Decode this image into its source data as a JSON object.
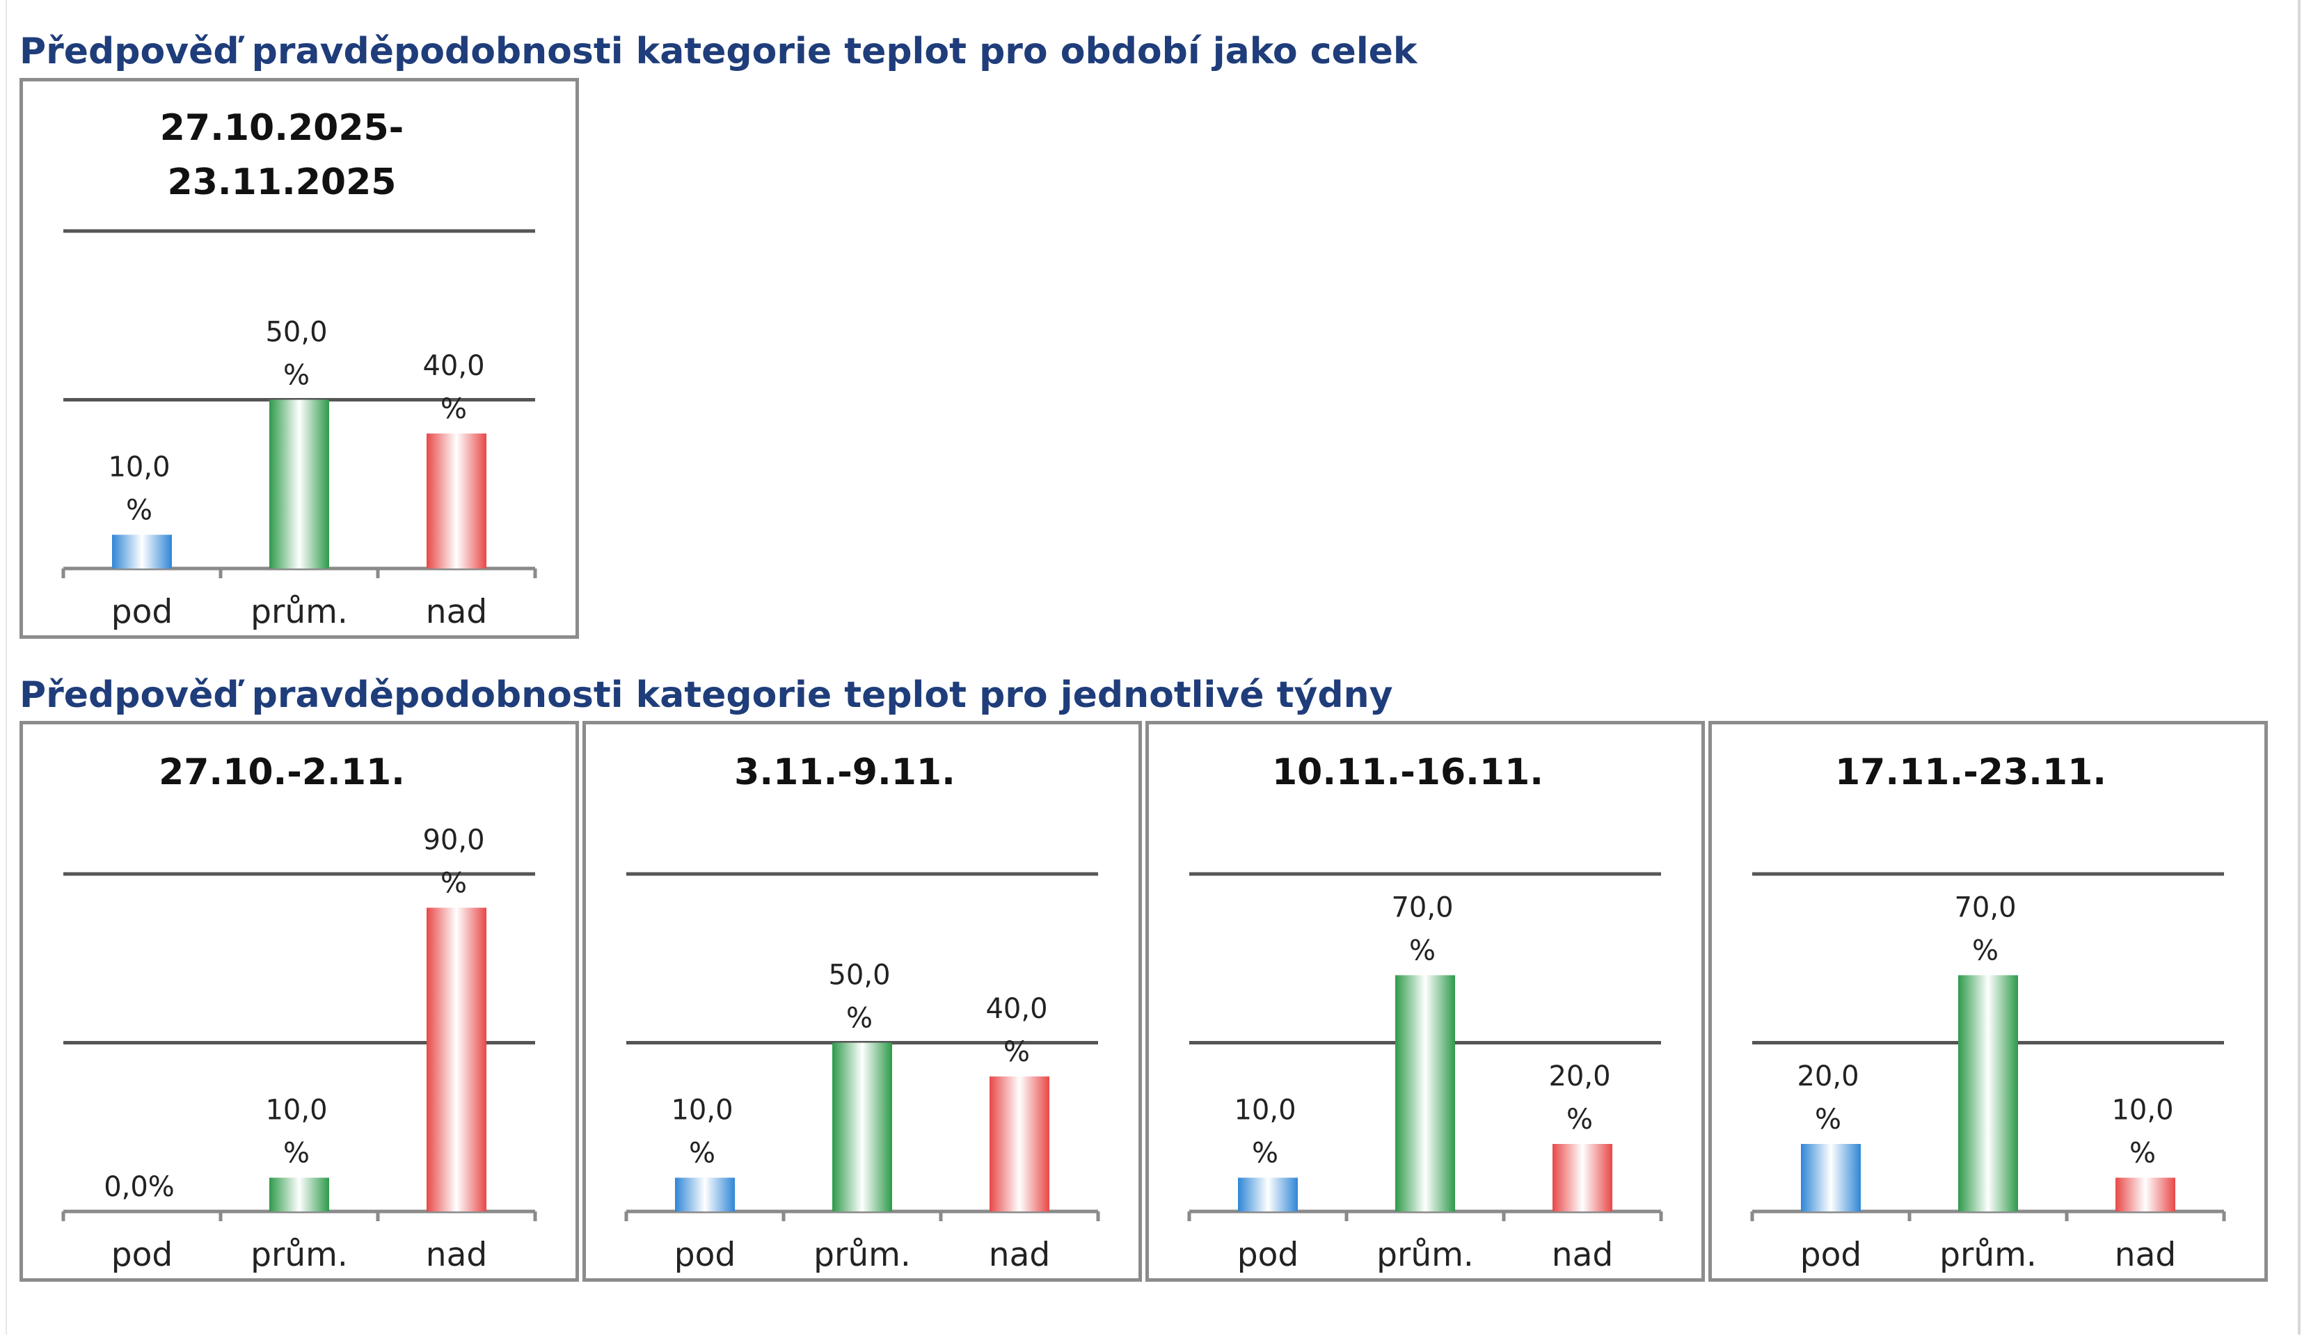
{
  "headings": {
    "overall": "Předpověď pravděpodobnosti kategorie teplot pro období jako celek",
    "weekly": "Předpověď pravděpodobnosti kategorie teplot pro jednotlivé týdny"
  },
  "colors": {
    "heading": "#1f3d7a",
    "pod": "#2f86d6",
    "prum": "#2e9a4a",
    "nad": "#e84848"
  },
  "chart_data": [
    {
      "type": "bar",
      "title_lines": [
        "27.10.2025-",
        "23.11.2025"
      ],
      "categories": [
        "pod",
        "prům.",
        "nad"
      ],
      "values": [
        10.0,
        50.0,
        40.0
      ],
      "value_labels": [
        [
          "10,0",
          "%"
        ],
        [
          "50,0",
          "%"
        ],
        [
          "40,0",
          "%"
        ]
      ],
      "ylim": [
        0,
        100
      ],
      "gridlines": [
        50,
        100
      ]
    },
    {
      "type": "bar",
      "title_lines": [
        "27.10.-2.11."
      ],
      "categories": [
        "pod",
        "prům.",
        "nad"
      ],
      "values": [
        0.0,
        10.0,
        90.0
      ],
      "value_labels": [
        [
          "0,0%"
        ],
        [
          "10,0",
          "%"
        ],
        [
          "90,0",
          "%"
        ]
      ],
      "ylim": [
        0,
        100
      ],
      "gridlines": [
        50,
        100
      ]
    },
    {
      "type": "bar",
      "title_lines": [
        "3.11.-9.11."
      ],
      "categories": [
        "pod",
        "prům.",
        "nad"
      ],
      "values": [
        10.0,
        50.0,
        40.0
      ],
      "value_labels": [
        [
          "10,0",
          "%"
        ],
        [
          "50,0",
          "%"
        ],
        [
          "40,0",
          "%"
        ]
      ],
      "ylim": [
        0,
        100
      ],
      "gridlines": [
        50,
        100
      ]
    },
    {
      "type": "bar",
      "title_lines": [
        "10.11.-16.11."
      ],
      "categories": [
        "pod",
        "prům.",
        "nad"
      ],
      "values": [
        10.0,
        70.0,
        20.0
      ],
      "value_labels": [
        [
          "10,0",
          "%"
        ],
        [
          "70,0",
          "%"
        ],
        [
          "20,0",
          "%"
        ]
      ],
      "ylim": [
        0,
        100
      ],
      "gridlines": [
        50,
        100
      ]
    },
    {
      "type": "bar",
      "title_lines": [
        "17.11.-23.11."
      ],
      "categories": [
        "pod",
        "prům.",
        "nad"
      ],
      "values": [
        20.0,
        70.0,
        10.0
      ],
      "value_labels": [
        [
          "20,0",
          "%"
        ],
        [
          "70,0",
          "%"
        ],
        [
          "10,0",
          "%"
        ]
      ],
      "ylim": [
        0,
        100
      ],
      "gridlines": [
        50,
        100
      ]
    }
  ]
}
